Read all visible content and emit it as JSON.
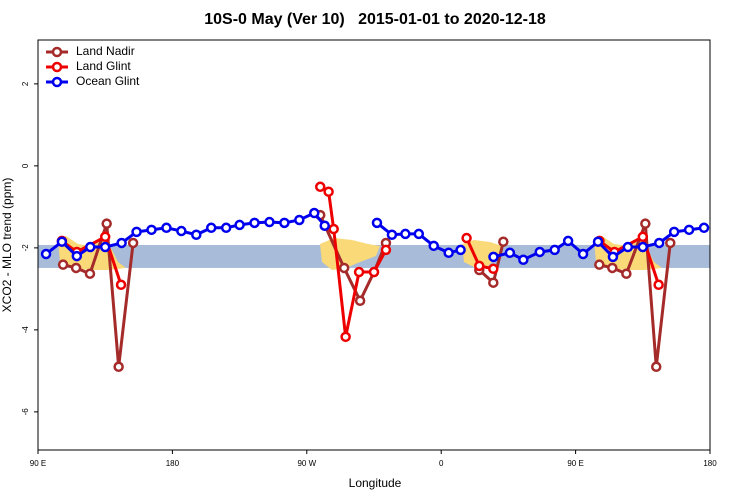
{
  "chart_data": {
    "type": "line",
    "title": "10S-0 May (Ver 10)   2015-01-01 to 2020-12-18",
    "xlabel": "Longitude",
    "ylabel": "XCO2 - MLO trend (ppm)",
    "xlim": [
      90,
      540
    ],
    "xticks": [
      {
        "value": 90,
        "label": "90 E"
      },
      {
        "value": 180,
        "label": "180"
      },
      {
        "value": 270,
        "label": "90 W"
      },
      {
        "value": 360,
        "label": "0"
      },
      {
        "value": 450,
        "label": "90 E"
      },
      {
        "value": 540,
        "label": "180"
      }
    ],
    "ylim": [
      -6.93,
      3.07
    ],
    "yticks": [
      2,
      0,
      -2,
      -4,
      -6
    ],
    "band": [
      -2.49,
      -1.93
    ],
    "band_color": "#a8bcd9",
    "legend": "upper left",
    "series": [
      {
        "name": "Land Nadir",
        "color": "#a52a2a",
        "x": [
          106.8,
          115.5,
          124.8,
          136,
          144,
          153.7,
          210,
          279,
          295,
          305.7,
          315,
          323,
          350,
          385.5,
          394.9,
          401.6,
          430,
          465.9,
          474.6,
          484,
          496.7,
          504,
          513.4
        ],
        "values": [
          -2.41,
          -2.49,
          -2.63,
          -1.41,
          -4.9,
          -1.88,
          null,
          -1.2,
          -2.49,
          -3.29,
          -2.59,
          -1.88,
          null,
          -2.54,
          -2.85,
          -1.85,
          null,
          -2.41,
          -2.49,
          -2.63,
          -1.41,
          -4.9,
          -1.88
        ]
      },
      {
        "name": "Land Glint",
        "color": "#ee0000",
        "x": [
          106,
          116,
          135,
          145.6,
          210,
          279,
          284.6,
          288,
          296,
          305,
          315,
          323,
          350,
          377,
          385.5,
          394.9,
          430,
          466,
          476,
          495,
          505.6
        ],
        "values": [
          -1.83,
          -2.1,
          -1.73,
          -2.9,
          null,
          -0.51,
          -0.63,
          -1.54,
          -4.17,
          -2.59,
          -2.59,
          -2.05,
          null,
          -1.76,
          -2.44,
          -2.51,
          null,
          -1.83,
          -2.1,
          -1.73,
          -2.9
        ]
      },
      {
        "name": "Ocean Glint",
        "color": "#0000ee",
        "x": [
          95.4,
          106,
          116,
          125,
          135,
          146,
          156,
          166,
          176,
          186,
          196,
          206,
          216,
          225,
          235,
          245,
          255,
          265,
          275,
          282,
          300,
          317,
          327,
          336,
          345,
          355,
          365,
          373,
          383,
          395,
          406,
          415,
          426,
          436,
          445,
          455,
          465,
          475,
          485,
          495,
          506,
          516,
          526,
          536
        ],
        "values": [
          -2.15,
          -1.85,
          -2.2,
          -1.98,
          -1.98,
          -1.88,
          -1.61,
          -1.56,
          -1.51,
          -1.59,
          -1.68,
          -1.51,
          -1.51,
          -1.44,
          -1.39,
          -1.37,
          -1.39,
          -1.32,
          -1.15,
          -1.46,
          null,
          -1.39,
          -1.68,
          -1.66,
          -1.66,
          -1.95,
          -2.12,
          -2.05,
          null,
          -2.22,
          -2.12,
          -2.29,
          -2.1,
          -2.05,
          -1.83,
          -2.15,
          -1.85,
          -2.22,
          -1.98,
          -1.98,
          -1.88,
          -1.61,
          -1.56,
          -1.51
        ]
      }
    ]
  }
}
